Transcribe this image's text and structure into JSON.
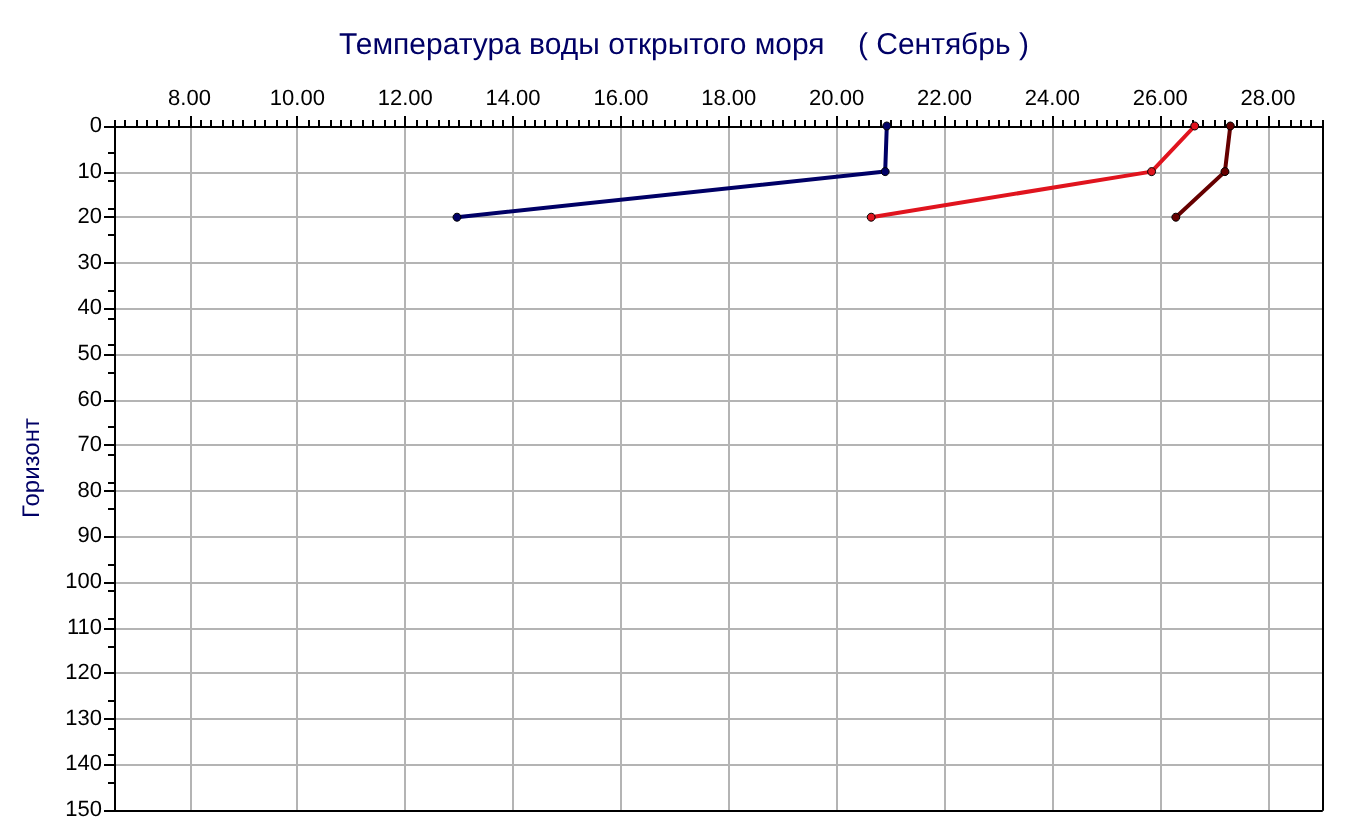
{
  "chart_data": {
    "type": "line",
    "title": "Температура воды открытого моря    ( Сентябрь )",
    "ylabel": "Горизонт",
    "xlim": [
      6.6,
      29.0
    ],
    "xticks": [
      {
        "value": 8,
        "label": "8.00"
      },
      {
        "value": 10,
        "label": "10.00"
      },
      {
        "value": 12,
        "label": "12.00"
      },
      {
        "value": 14,
        "label": "14.00"
      },
      {
        "value": 16,
        "label": "16.00"
      },
      {
        "value": 18,
        "label": "18.00"
      },
      {
        "value": 20,
        "label": "20.00"
      },
      {
        "value": 22,
        "label": "22.00"
      },
      {
        "value": 24,
        "label": "24.00"
      },
      {
        "value": 26,
        "label": "26.00"
      },
      {
        "value": 28,
        "label": "28.00"
      }
    ],
    "ylim": [
      150,
      0
    ],
    "yticks": [
      0,
      10,
      20,
      30,
      40,
      50,
      60,
      70,
      80,
      90,
      100,
      110,
      120,
      130,
      140,
      150
    ],
    "series": [
      {
        "color": "#000066",
        "x": [
          20.93,
          20.9,
          12.96
        ],
        "values": [
          0,
          10,
          20
        ]
      },
      {
        "color": "#e0141e",
        "x": [
          26.64,
          25.84,
          20.64
        ],
        "values": [
          0,
          10,
          20
        ]
      },
      {
        "color": "#660000",
        "x": [
          27.3,
          27.2,
          26.29
        ],
        "values": [
          0,
          10,
          20
        ]
      }
    ],
    "grid": true,
    "marker": "circle",
    "line_style": "solid"
  }
}
